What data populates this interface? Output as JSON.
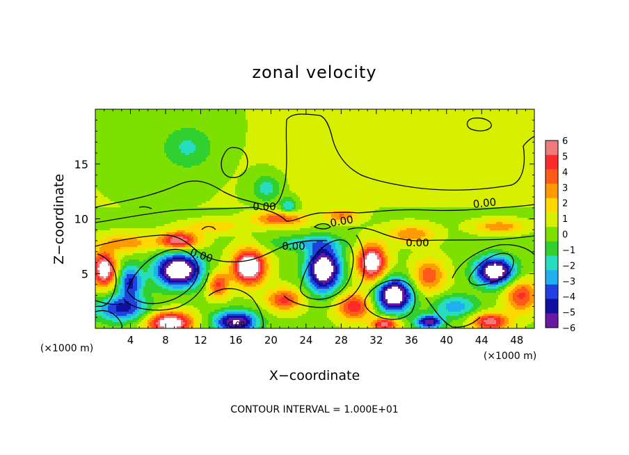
{
  "chart_data": {
    "type": "heatmap",
    "title": "zonal velocity",
    "xlabel": "X−coordinate",
    "ylabel": "Z−coordinate",
    "x_unit_left": "(×1000 m)",
    "x_unit_right": "(×1000 m)",
    "xlim": [
      0,
      50
    ],
    "ylim": [
      0,
      20
    ],
    "x_ticks": [
      4,
      8,
      12,
      16,
      20,
      24,
      28,
      32,
      36,
      40,
      44,
      48
    ],
    "y_ticks": [
      5,
      10,
      15
    ],
    "footer": "CONTOUR INTERVAL = 1.000E+01",
    "contour_labels": [
      "0.00",
      "0.00",
      "0.00",
      "0.00",
      "0.00",
      "0.00",
      "0.00"
    ],
    "colorbar": {
      "levels": [
        6,
        5,
        4,
        3,
        2,
        1,
        0,
        -1,
        -2,
        -3,
        -4,
        -5,
        -6
      ],
      "colors": [
        "#f07a7a",
        "#ff2a2a",
        "#ff5a1a",
        "#ff9a00",
        "#ffd800",
        "#d6f000",
        "#7ee000",
        "#30d030",
        "#28dcc0",
        "#20b0f0",
        "#2040e0",
        "#1010a0",
        "#6a1aa0"
      ]
    },
    "anomalies": [
      {
        "x": 10.5,
        "z": 16.5,
        "sx": 3.0,
        "sz": 2.0,
        "v": -2.2
      },
      {
        "x": 19.5,
        "z": 12.8,
        "sx": 1.6,
        "sz": 1.2,
        "v": -2.6
      },
      {
        "x": 22.0,
        "z": 11.2,
        "sx": 0.9,
        "sz": 0.7,
        "v": -3.2
      },
      {
        "x": 30.0,
        "z": 14.0,
        "sx": 8.0,
        "sz": 3.0,
        "v": 0.6
      },
      {
        "x": 21.0,
        "z": 10.0,
        "sx": 3.0,
        "sz": 0.7,
        "v": 4.0
      },
      {
        "x": 28.0,
        "z": 10.3,
        "sx": 1.8,
        "sz": 0.6,
        "v": 3.2
      },
      {
        "x": 9.5,
        "z": 8.0,
        "sx": 2.2,
        "sz": 0.8,
        "v": 6.5
      },
      {
        "x": 3.5,
        "z": 7.8,
        "sx": 3.0,
        "sz": 0.8,
        "v": 3.0
      },
      {
        "x": 13.5,
        "z": 9.3,
        "sx": 3.0,
        "sz": 0.6,
        "v": 2.2
      },
      {
        "x": 36.0,
        "z": 8.6,
        "sx": 2.5,
        "sz": 0.8,
        "v": 3.2
      },
      {
        "x": 46.0,
        "z": 9.3,
        "sx": 2.8,
        "sz": 0.6,
        "v": 3.0
      },
      {
        "x": 24.0,
        "z": 7.8,
        "sx": 4.0,
        "sz": 0.7,
        "v": -2.5
      },
      {
        "x": 9.5,
        "z": 5.3,
        "sx": 2.6,
        "sz": 1.5,
        "v": -9.0
      },
      {
        "x": 4.0,
        "z": 4.2,
        "sx": 1.4,
        "sz": 1.5,
        "v": -5.0
      },
      {
        "x": 1.0,
        "z": 5.4,
        "sx": 1.3,
        "sz": 1.5,
        "v": 8.0
      },
      {
        "x": 17.5,
        "z": 5.6,
        "sx": 1.8,
        "sz": 1.5,
        "v": 9.0
      },
      {
        "x": 14.0,
        "z": 4.0,
        "sx": 1.2,
        "sz": 1.2,
        "v": 4.5
      },
      {
        "x": 26.0,
        "z": 5.4,
        "sx": 1.9,
        "sz": 2.0,
        "v": -9.0
      },
      {
        "x": 31.5,
        "z": 6.0,
        "sx": 1.6,
        "sz": 1.6,
        "v": 8.0
      },
      {
        "x": 34.0,
        "z": 3.0,
        "sx": 2.0,
        "sz": 1.5,
        "v": -9.0
      },
      {
        "x": 38.0,
        "z": 4.8,
        "sx": 1.8,
        "sz": 1.5,
        "v": 4.0
      },
      {
        "x": 45.5,
        "z": 5.2,
        "sx": 2.2,
        "sz": 1.3,
        "v": -8.5
      },
      {
        "x": 48.5,
        "z": 3.0,
        "sx": 1.8,
        "sz": 1.5,
        "v": 4.5
      },
      {
        "x": 3.0,
        "z": 1.8,
        "sx": 3.0,
        "sz": 1.2,
        "v": -5.0
      },
      {
        "x": 8.5,
        "z": 0.5,
        "sx": 2.5,
        "sz": 1.0,
        "v": 8.0
      },
      {
        "x": 16.0,
        "z": 0.6,
        "sx": 2.5,
        "sz": 1.0,
        "v": -7.0
      },
      {
        "x": 21.5,
        "z": 2.6,
        "sx": 2.0,
        "sz": 1.0,
        "v": 4.5
      },
      {
        "x": 29.5,
        "z": 2.0,
        "sx": 2.0,
        "sz": 1.2,
        "v": 5.0
      },
      {
        "x": 41.0,
        "z": 2.0,
        "sx": 2.5,
        "sz": 1.0,
        "v": -3.5
      },
      {
        "x": 45.0,
        "z": 0.6,
        "sx": 2.0,
        "sz": 0.8,
        "v": 6.0
      },
      {
        "x": 38.0,
        "z": 0.6,
        "sx": 1.5,
        "sz": 0.6,
        "v": -6.5
      },
      {
        "x": 33.0,
        "z": 0.4,
        "sx": 1.5,
        "sz": 0.6,
        "v": 6.0
      }
    ]
  }
}
